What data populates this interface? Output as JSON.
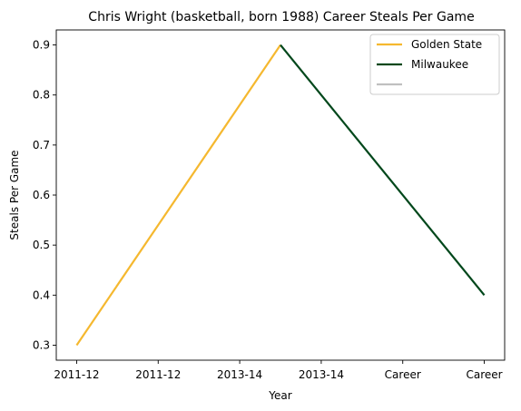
{
  "chart_data": {
    "type": "line",
    "title": "Chris Wright (basketball, born 1988) Career Steals Per Game",
    "xlabel": "Year",
    "ylabel": "Steals Per Game",
    "x_tick_labels": [
      "2011-12",
      "2011-12",
      "2013-14",
      "2013-14",
      "Career",
      "Career"
    ],
    "xlim": [
      -0.25,
      5.25
    ],
    "ylim": [
      0.27,
      0.93
    ],
    "y_ticks": [
      0.3,
      0.4,
      0.5,
      0.6,
      0.7,
      0.8,
      0.9
    ],
    "grid": false,
    "legend_position": "top-right",
    "series": [
      {
        "name": "Golden State",
        "color": "#F5B82F",
        "points": [
          [
            0,
            0.3
          ],
          [
            2.5,
            0.9
          ]
        ]
      },
      {
        "name": "Milwaukee",
        "color": "#00471B",
        "points": [
          [
            2.5,
            0.9
          ],
          [
            5,
            0.4
          ]
        ]
      },
      {
        "name": "",
        "color": "#C0C0C0",
        "points": []
      }
    ]
  }
}
